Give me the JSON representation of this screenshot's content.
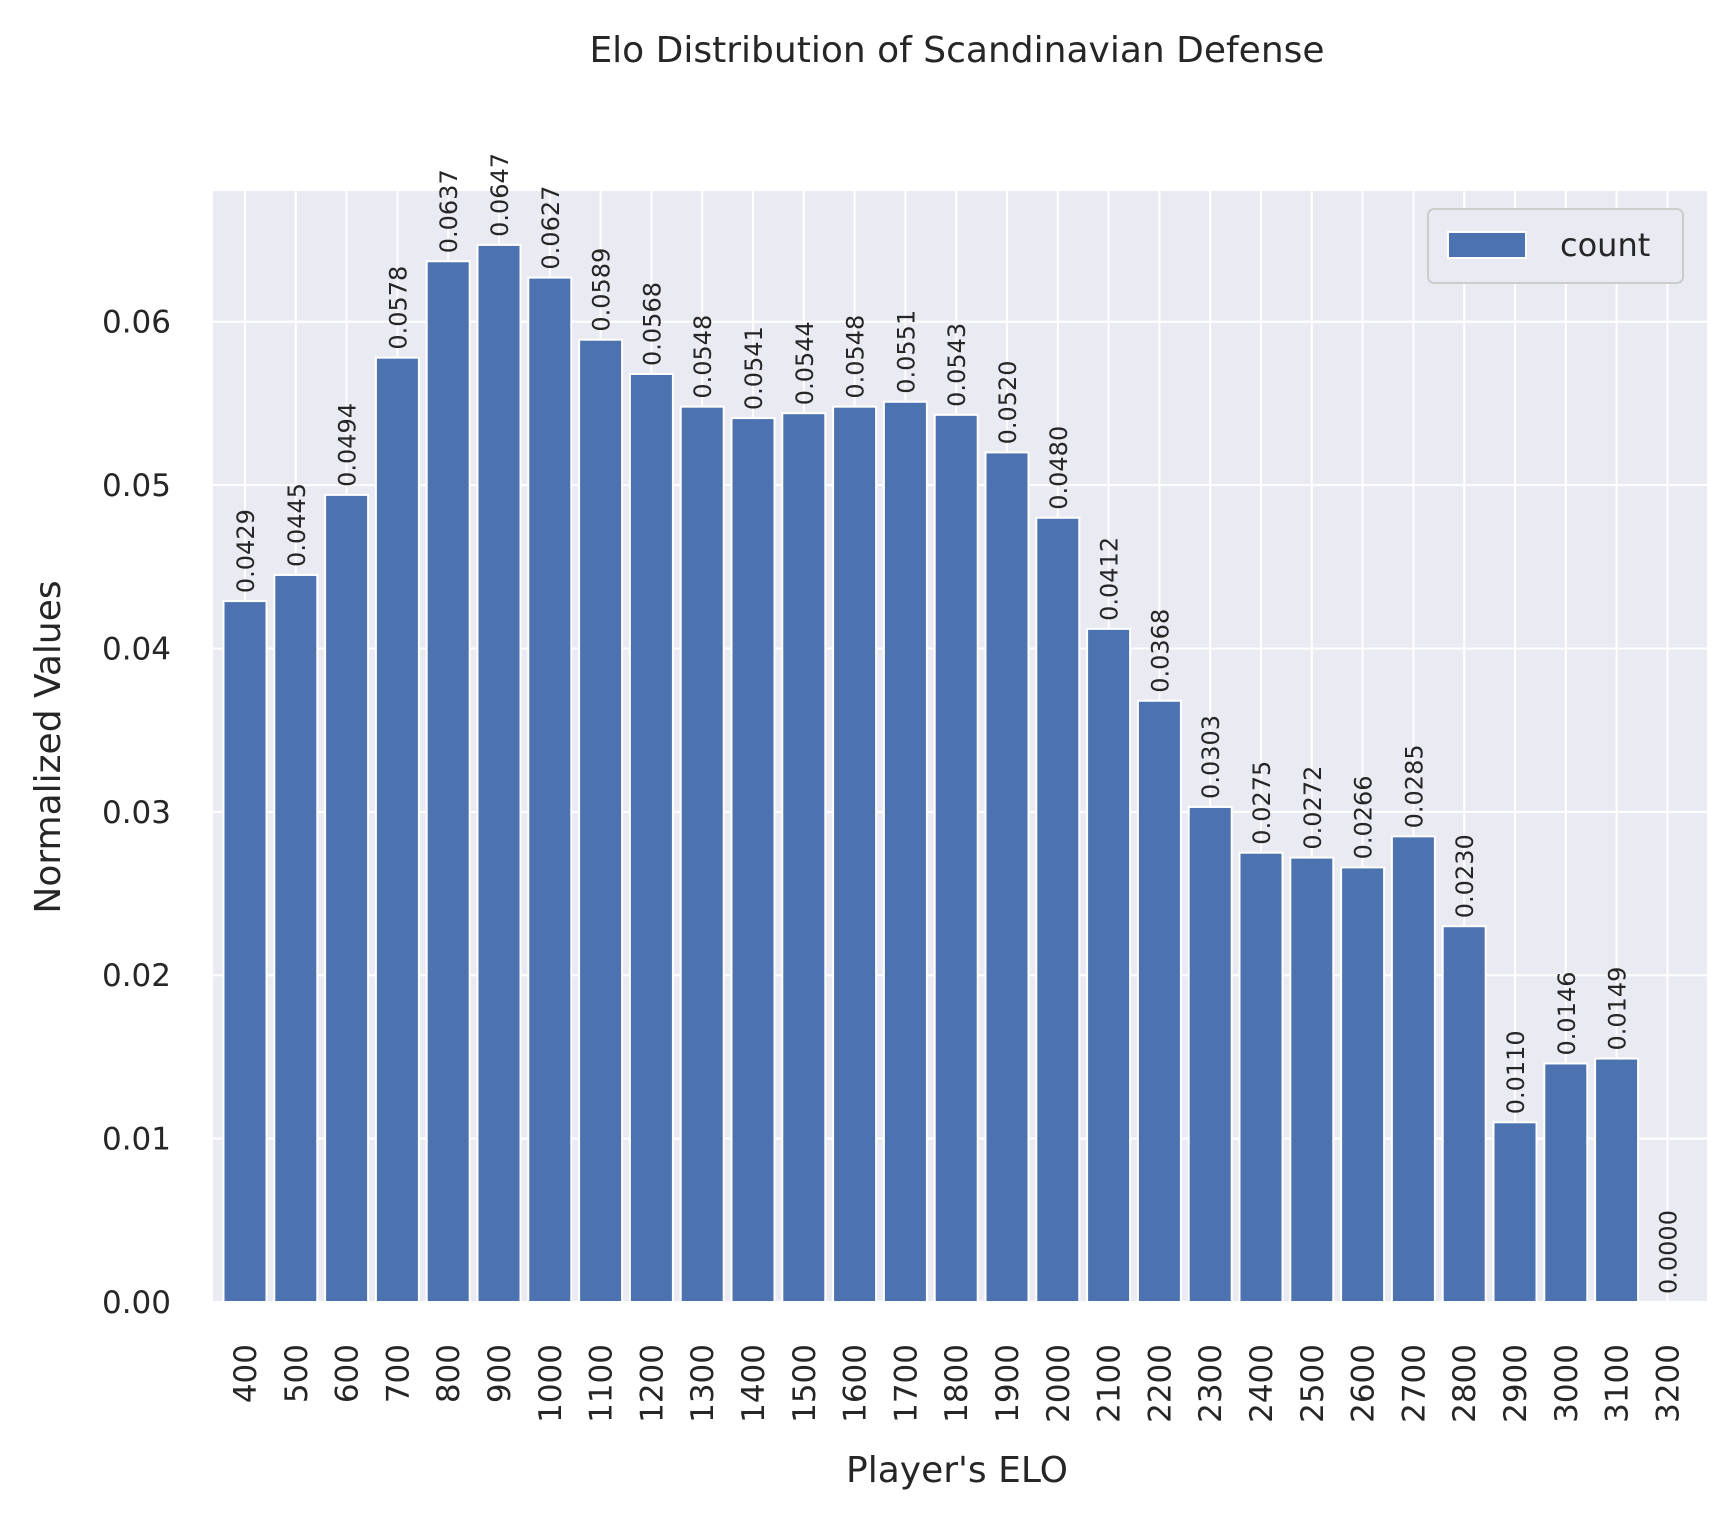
{
  "chart_data": {
    "type": "bar",
    "title": "Elo Distribution of Scandinavian Defense",
    "xlabel": "Player's ELO",
    "ylabel": "Normalized Values",
    "categories": [
      "400",
      "500",
      "600",
      "700",
      "800",
      "900",
      "1000",
      "1100",
      "1200",
      "1300",
      "1400",
      "1500",
      "1600",
      "1700",
      "1800",
      "1900",
      "2000",
      "2100",
      "2200",
      "2300",
      "2400",
      "2500",
      "2600",
      "2700",
      "2800",
      "2900",
      "3000",
      "3100",
      "3200"
    ],
    "series": [
      {
        "name": "count",
        "color": "#4c72b0",
        "values": [
          0.0429,
          0.0445,
          0.0494,
          0.0578,
          0.0637,
          0.0647,
          0.0627,
          0.0589,
          0.0568,
          0.0548,
          0.0541,
          0.0544,
          0.0548,
          0.0551,
          0.0543,
          0.052,
          0.048,
          0.0412,
          0.0368,
          0.0303,
          0.0275,
          0.0272,
          0.0266,
          0.0285,
          0.023,
          0.011,
          0.0146,
          0.0149,
          0.0
        ],
        "labels": [
          "0.0429",
          "0.0445",
          "0.0494",
          "0.0578",
          "0.0637",
          "0.0647",
          "0.0627",
          "0.0589",
          "0.0568",
          "0.0548",
          "0.0541",
          "0.0544",
          "0.0548",
          "0.0551",
          "0.0543",
          "0.0520",
          "0.0480",
          "0.0412",
          "0.0368",
          "0.0303",
          "0.0275",
          "0.0272",
          "0.0266",
          "0.0285",
          "0.0230",
          "0.0110",
          "0.0146",
          "0.0149",
          "0.0000"
        ]
      }
    ],
    "yticks": [
      "0.00",
      "0.01",
      "0.02",
      "0.03",
      "0.04",
      "0.05",
      "0.06"
    ],
    "ylim": [
      0,
      0.068
    ],
    "grid": true,
    "legend": "top-right",
    "background": "#eaeaf2",
    "grid_color": "#ffffff"
  }
}
